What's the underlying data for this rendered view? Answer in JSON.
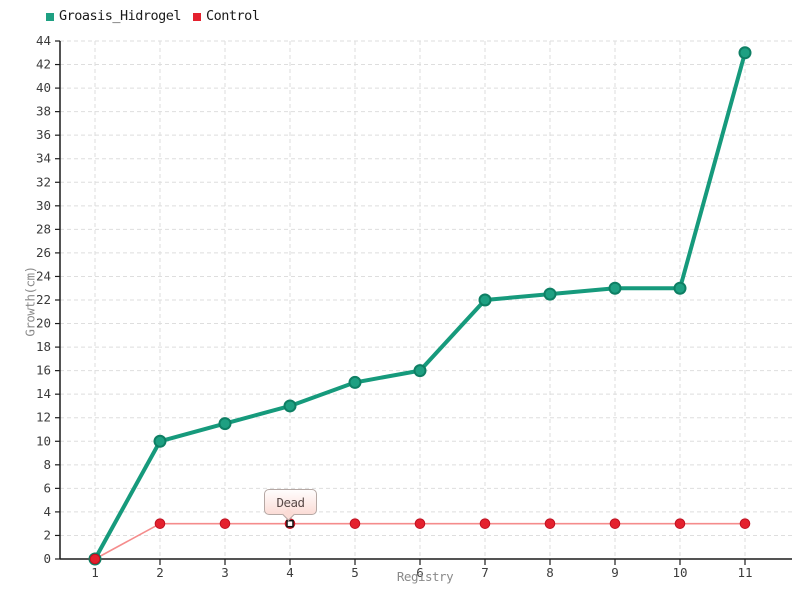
{
  "chart_data": {
    "type": "line",
    "x": [
      1,
      2,
      3,
      4,
      5,
      6,
      7,
      8,
      9,
      10,
      11
    ],
    "xlabel": "Registry",
    "ylabel": "Growth(cm)",
    "ylim": [
      0,
      44
    ],
    "ytick_step": 2,
    "grid": true,
    "legend_position": "top-left",
    "series": [
      {
        "name": "Groasis_Hidrogel",
        "color": "#1ea082",
        "marker_stroke": "#0e7f64",
        "line_color": "#169a7c",
        "line_width": 4,
        "marker_radius": 5.5,
        "marker_stroke_width": 2,
        "values": [
          0,
          10,
          11.5,
          13,
          15,
          16,
          22,
          22.5,
          23,
          23,
          43
        ]
      },
      {
        "name": "Control",
        "color": "#e4212e",
        "marker_stroke": "#c01020",
        "line_color": "#f58c8c",
        "line_width": 1.6,
        "marker_radius": 4.8,
        "marker_stroke_width": 1,
        "values": [
          0,
          3,
          3,
          3,
          3,
          3,
          3,
          3,
          3,
          3,
          3
        ]
      }
    ],
    "annotation": {
      "text": "Dead",
      "series": "Control",
      "x": 4,
      "y": 3
    }
  }
}
